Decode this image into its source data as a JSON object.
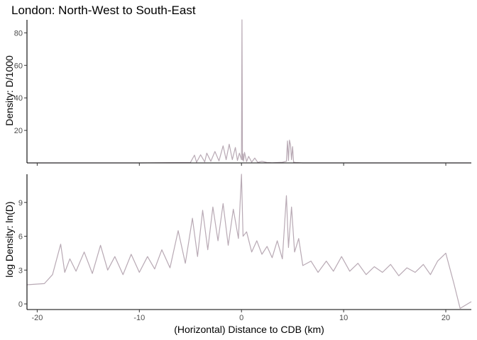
{
  "chart_data": {
    "type": "line",
    "title": "London: North-West to South-East",
    "xlabel": "(Horizontal) Distance to CDB (km)",
    "xlim": [
      -21,
      22.5
    ],
    "x_ticks": [
      "-20",
      "-10",
      "0",
      "10",
      "20"
    ],
    "x_tick_values": [
      -20,
      -10,
      0,
      10,
      20
    ],
    "line_color": "#b8a9b4",
    "grid": false,
    "panels": [
      {
        "ylabel": "Density: D/1000",
        "ylim": [
          0,
          88
        ],
        "y_ticks": [
          "20",
          "40",
          "60",
          "80"
        ],
        "y_tick_values": [
          20,
          40,
          60,
          80
        ],
        "series": [
          {
            "x": [
              -21,
              -10,
              -5.0,
              -4.6,
              -4.4,
              -4.0,
              -3.6,
              -3.4,
              -3.0,
              -2.6,
              -2.2,
              -1.8,
              -1.5,
              -1.2,
              -0.9,
              -0.6,
              -0.4,
              -0.2,
              0.0,
              0.05,
              0.1,
              0.15,
              0.2,
              0.3,
              0.5,
              0.7,
              1.0,
              1.3,
              1.6,
              2.0,
              2.5,
              3.0,
              3.5,
              4.0,
              4.4,
              4.5,
              4.6,
              4.7,
              4.8,
              4.9,
              5.0,
              5.1,
              5.3,
              6.0,
              22.5
            ],
            "y": [
              0,
              0,
              0.3,
              4.8,
              0.4,
              5.0,
              0.6,
              6.0,
              1.0,
              7.0,
              1.2,
              10.5,
              2.0,
              11.5,
              2.0,
              9.5,
              1.5,
              6.0,
              2.0,
              88,
              1.8,
              5.5,
              1.0,
              6.5,
              0.8,
              4.0,
              0.5,
              3.0,
              0.3,
              1.0,
              0.2,
              0.1,
              0.2,
              0.4,
              1.0,
              13.5,
              1.5,
              14.0,
              11.0,
              2.0,
              10.0,
              0.5,
              0.2,
              0,
              0
            ]
          }
        ]
      },
      {
        "ylabel": "log Density: ln(D)",
        "ylim": [
          -0.5,
          11.5
        ],
        "y_ticks": [
          "0",
          "3",
          "6",
          "9"
        ],
        "y_tick_values": [
          0,
          3,
          6,
          9
        ],
        "series": [
          {
            "x": [
              -21.0,
              -19.3,
              -18.5,
              -17.7,
              -17.3,
              -16.8,
              -16.2,
              -15.4,
              -14.6,
              -13.8,
              -13.1,
              -12.4,
              -11.6,
              -10.8,
              -10.0,
              -9.2,
              -8.5,
              -7.8,
              -7.0,
              -6.2,
              -5.5,
              -4.8,
              -4.3,
              -3.8,
              -3.3,
              -2.8,
              -2.3,
              -1.8,
              -1.3,
              -0.8,
              -0.3,
              0.0,
              0.15,
              0.5,
              1.0,
              1.5,
              2.0,
              2.5,
              3.0,
              3.5,
              4.0,
              4.4,
              4.6,
              4.9,
              5.2,
              5.6,
              6.0,
              6.8,
              7.5,
              8.3,
              9.0,
              9.8,
              10.6,
              11.4,
              12.2,
              13.0,
              13.8,
              14.6,
              15.4,
              16.2,
              17.0,
              17.8,
              18.5,
              19.2,
              20.0,
              20.8,
              21.4,
              22.5
            ],
            "y": [
              1.7,
              1.8,
              2.6,
              5.3,
              2.8,
              4.0,
              2.9,
              4.6,
              2.7,
              5.2,
              3.0,
              4.2,
              2.6,
              4.4,
              2.8,
              4.2,
              3.1,
              4.8,
              3.2,
              6.5,
              3.6,
              7.6,
              4.2,
              8.3,
              4.8,
              8.6,
              5.6,
              8.9,
              5.2,
              8.4,
              5.8,
              11.5,
              6.0,
              6.4,
              4.6,
              5.6,
              4.4,
              5.1,
              4.1,
              5.6,
              4.0,
              9.6,
              5.0,
              8.6,
              4.6,
              5.8,
              3.4,
              3.8,
              2.8,
              3.8,
              2.9,
              4.2,
              2.9,
              3.6,
              2.6,
              3.3,
              2.8,
              3.5,
              2.5,
              3.2,
              2.8,
              3.5,
              2.6,
              3.8,
              4.5,
              1.8,
              -0.4,
              0.2
            ]
          }
        ]
      }
    ]
  }
}
